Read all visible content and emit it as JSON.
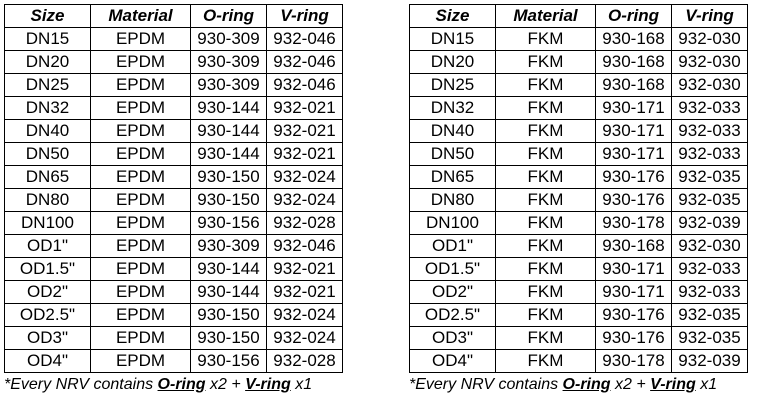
{
  "headers": {
    "size": "Size",
    "material": "Material",
    "oring": "O-ring",
    "vring": "V-ring"
  },
  "left_rows": [
    [
      "DN15",
      "EPDM",
      "930-309",
      "932-046"
    ],
    [
      "DN20",
      "EPDM",
      "930-309",
      "932-046"
    ],
    [
      "DN25",
      "EPDM",
      "930-309",
      "932-046"
    ],
    [
      "DN32",
      "EPDM",
      "930-144",
      "932-021"
    ],
    [
      "DN40",
      "EPDM",
      "930-144",
      "932-021"
    ],
    [
      "DN50",
      "EPDM",
      "930-144",
      "932-021"
    ],
    [
      "DN65",
      "EPDM",
      "930-150",
      "932-024"
    ],
    [
      "DN80",
      "EPDM",
      "930-150",
      "932-024"
    ],
    [
      "DN100",
      "EPDM",
      "930-156",
      "932-028"
    ],
    [
      "OD1\"",
      "EPDM",
      "930-309",
      "932-046"
    ],
    [
      "OD1.5\"",
      "EPDM",
      "930-144",
      "932-021"
    ],
    [
      "OD2\"",
      "EPDM",
      "930-144",
      "932-021"
    ],
    [
      "OD2.5\"",
      "EPDM",
      "930-150",
      "932-024"
    ],
    [
      "OD3\"",
      "EPDM",
      "930-150",
      "932-024"
    ],
    [
      "OD4\"",
      "EPDM",
      "930-156",
      "932-028"
    ]
  ],
  "right_rows": [
    [
      "DN15",
      "FKM",
      "930-168",
      "932-030"
    ],
    [
      "DN20",
      "FKM",
      "930-168",
      "932-030"
    ],
    [
      "DN25",
      "FKM",
      "930-168",
      "932-030"
    ],
    [
      "DN32",
      "FKM",
      "930-171",
      "932-033"
    ],
    [
      "DN40",
      "FKM",
      "930-171",
      "932-033"
    ],
    [
      "DN50",
      "FKM",
      "930-171",
      "932-033"
    ],
    [
      "DN65",
      "FKM",
      "930-176",
      "932-035"
    ],
    [
      "DN80",
      "FKM",
      "930-176",
      "932-035"
    ],
    [
      "DN100",
      "FKM",
      "930-178",
      "932-039"
    ],
    [
      "OD1\"",
      "FKM",
      "930-168",
      "932-030"
    ],
    [
      "OD1.5\"",
      "FKM",
      "930-171",
      "932-033"
    ],
    [
      "OD2\"",
      "FKM",
      "930-171",
      "932-033"
    ],
    [
      "OD2.5\"",
      "FKM",
      "930-176",
      "932-035"
    ],
    [
      "OD3\"",
      "FKM",
      "930-176",
      "932-035"
    ],
    [
      "OD4\"",
      "FKM",
      "930-178",
      "932-039"
    ]
  ],
  "footnote": {
    "prefix": "*Every NRV contains ",
    "oring": "O-ring",
    "oring_qty": " x2 + ",
    "vring": "V-ring",
    "vring_qty": " x1"
  }
}
